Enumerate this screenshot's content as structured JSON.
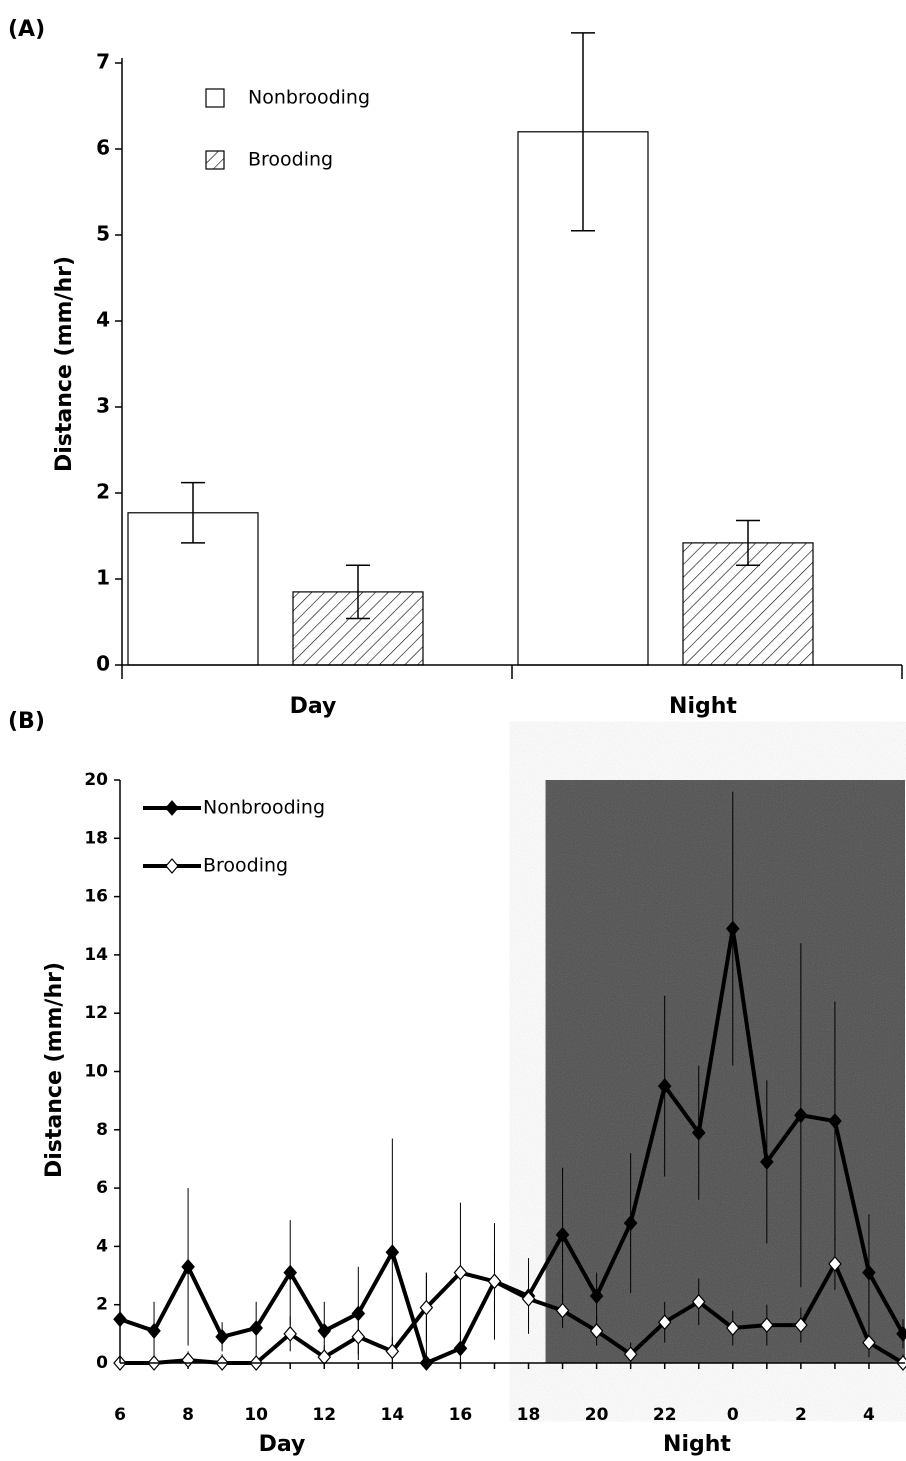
{
  "chart_data": [
    {
      "type": "bar",
      "panel_label": "(A)",
      "y_label": "Distance (mm/hr)",
      "categories": [
        "Day",
        "Night"
      ],
      "series": [
        {
          "name": "Nonbrooding",
          "color": "#ffffff",
          "hatch": false,
          "values": [
            1.77,
            6.2
          ],
          "errors": [
            0.35,
            1.15
          ]
        },
        {
          "name": "Brooding",
          "color": "#ffffff",
          "hatch": true,
          "values": [
            0.85,
            1.42
          ],
          "errors": [
            0.31,
            0.26
          ]
        }
      ],
      "ylim": [
        0,
        7
      ],
      "yticks": [
        0,
        1,
        2,
        3,
        4,
        5,
        6,
        7
      ]
    },
    {
      "type": "line",
      "panel_label": "(B)",
      "y_label": "Distance (mm/hr)",
      "x_labels": [
        "Day",
        "Night"
      ],
      "categories": [
        "6",
        null,
        "8",
        null,
        "10",
        null,
        "12",
        null,
        "14",
        null,
        "16",
        null,
        "18",
        null,
        "20",
        null,
        "22",
        null,
        "0",
        null,
        "2",
        null,
        "4",
        null
      ],
      "shade": {
        "from": 12.5,
        "color": "#4d4d4d"
      },
      "series": [
        {
          "name": "Nonbrooding",
          "color": "#000000",
          "marker_fill": "#000000",
          "values": [
            1.5,
            1.1,
            3.3,
            0.9,
            1.2,
            3.1,
            1.1,
            1.7,
            3.8,
            0.0,
            0.5,
            2.8,
            2.3,
            4.4,
            2.3,
            4.8,
            9.5,
            7.9,
            14.9,
            6.9,
            8.5,
            8.3,
            3.1,
            1.0
          ],
          "errors": [
            0.5,
            1.0,
            2.7,
            0.5,
            0.9,
            1.8,
            1.0,
            1.6,
            3.9,
            3.1,
            0.5,
            2.0,
            1.3,
            2.3,
            0.8,
            2.4,
            3.1,
            2.3,
            4.7,
            2.8,
            5.9,
            4.1,
            2.0,
            0.5
          ]
        },
        {
          "name": "Brooding",
          "color": "#000000",
          "marker_fill": "#ffffff",
          "values": [
            0.0,
            0.0,
            0.1,
            0.0,
            0.0,
            1.0,
            0.2,
            0.9,
            0.4,
            1.9,
            3.1,
            2.8,
            2.2,
            1.8,
            1.1,
            0.3,
            1.4,
            2.1,
            1.2,
            1.3,
            1.3,
            3.4,
            0.7,
            0.0
          ],
          "errors": [
            0.3,
            0.3,
            0.3,
            0.3,
            0.3,
            0.6,
            0.4,
            0.6,
            0.5,
            1.2,
            2.4,
            1.0,
            0.8,
            0.6,
            0.5,
            0.4,
            0.7,
            0.8,
            0.6,
            0.7,
            0.6,
            0.9,
            0.5,
            0.3
          ]
        }
      ],
      "ylim": [
        0,
        20
      ],
      "yticks": [
        0,
        2,
        4,
        6,
        8,
        10,
        12,
        14,
        16,
        18,
        20
      ]
    }
  ]
}
